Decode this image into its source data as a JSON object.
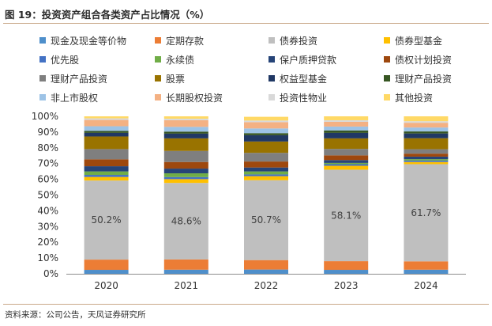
{
  "figure_title": "图 19：投资资产组合各类资产占比情况（%）",
  "source": "资料来源：公司公告，天风证券研究所",
  "chart_data": {
    "type": "bar",
    "stacked": true,
    "percent": true,
    "categories": [
      "2020",
      "2021",
      "2022",
      "2023",
      "2024"
    ],
    "ylim": [
      0,
      100
    ],
    "yticks": [
      "0%",
      "10%",
      "20%",
      "30%",
      "40%",
      "50%",
      "60%",
      "70%",
      "80%",
      "90%",
      "100%"
    ],
    "grid": false,
    "legend_position": "top",
    "series": [
      {
        "name": "现金及现金等价物",
        "color": "#4e8fcb",
        "values": [
          2.5,
          2.6,
          2.7,
          2.5,
          2.6
        ]
      },
      {
        "name": "定期存款",
        "color": "#ec7d35",
        "values": [
          6.5,
          6.5,
          6.0,
          5.5,
          5.3
        ]
      },
      {
        "name": "债券投资",
        "color": "#bfbfbf",
        "values": [
          50.2,
          48.6,
          50.7,
          58.1,
          61.7
        ]
      },
      {
        "name": "债券型基金",
        "color": "#ffc000",
        "values": [
          2.3,
          2.4,
          2.6,
          2.5,
          1.4
        ]
      },
      {
        "name": "优先股",
        "color": "#4472c4",
        "values": [
          1.3,
          1.3,
          1.1,
          1.0,
          0.9
        ]
      },
      {
        "name": "永续债",
        "color": "#70ad47",
        "values": [
          2.2,
          2.4,
          1.9,
          0.8,
          0.9
        ]
      },
      {
        "name": "保户质押贷款",
        "color": "#264478",
        "values": [
          3.3,
          3.0,
          2.5,
          1.8,
          1.6
        ]
      },
      {
        "name": "债权计划投资",
        "color": "#9e480e",
        "values": [
          4.4,
          4.2,
          3.8,
          3.0,
          1.9
        ]
      },
      {
        "name": "理财产品投资",
        "color": "#7f7f7f",
        "values": [
          6.5,
          7.0,
          5.5,
          4.1,
          2.8
        ]
      },
      {
        "name": "股票",
        "color": "#997300",
        "values": [
          8.0,
          8.0,
          7.2,
          6.7,
          7.0
        ]
      },
      {
        "name": "权益型基金",
        "color": "#203864",
        "values": [
          2.3,
          3.0,
          4.0,
          3.5,
          3.0
        ]
      },
      {
        "name": "理财产品投资",
        "color": "#375623",
        "values": [
          1.2,
          1.3,
          1.3,
          1.5,
          1.3
        ]
      },
      {
        "name": "非上市股权",
        "color": "#9dc3e6",
        "values": [
          3.0,
          3.0,
          3.0,
          2.5,
          2.5
        ]
      },
      {
        "name": "长期股权投资",
        "color": "#f4b183",
        "values": [
          4.0,
          4.2,
          4.0,
          3.0,
          3.0
        ]
      },
      {
        "name": "投资性物业",
        "color": "#d9d9d9",
        "values": [
          1.0,
          1.0,
          1.0,
          1.0,
          1.0
        ]
      },
      {
        "name": "其他投资",
        "color": "#ffd966",
        "values": [
          1.3,
          1.5,
          2.4,
          2.5,
          3.1
        ]
      }
    ],
    "data_labels": [
      {
        "category": "2020",
        "series": "债券投资",
        "text": "50.2%"
      },
      {
        "category": "2021",
        "series": "债券投资",
        "text": "48.6%"
      },
      {
        "category": "2022",
        "series": "债券投资",
        "text": "50.7%"
      },
      {
        "category": "2023",
        "series": "债券投资",
        "text": "58.1%"
      },
      {
        "category": "2024",
        "series": "债券投资",
        "text": "61.7%"
      }
    ]
  }
}
